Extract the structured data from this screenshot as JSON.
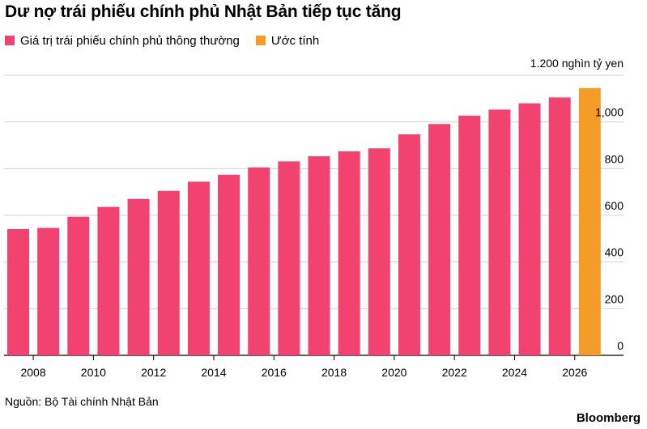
{
  "chart_data": {
    "type": "bar",
    "title": "Dư nợ trái phiếu chính phủ Nhật Bản tiếp tục tăng",
    "legend": [
      {
        "label": "Giá trị trái phiếu chính phủ thông thường",
        "color": "#f2426f"
      },
      {
        "label": "Ước tính",
        "color": "#f59b2a"
      }
    ],
    "y_unit_label": "1.200 nghìn tỷ yen",
    "y_ticks": [
      "0",
      "200",
      "400",
      "600",
      "800",
      "1,000"
    ],
    "ylim": [
      0,
      1200
    ],
    "x_ticks": [
      "2008",
      "2010",
      "2012",
      "2014",
      "2016",
      "2018",
      "2020",
      "2022",
      "2024",
      "2026"
    ],
    "categories": [
      2007,
      2008,
      2009,
      2010,
      2011,
      2012,
      2013,
      2014,
      2015,
      2016,
      2017,
      2018,
      2019,
      2020,
      2021,
      2022,
      2023,
      2024,
      2025,
      2026
    ],
    "series": [
      {
        "name": "Giá trị trái phiếu chính phủ thông thường",
        "color": "#f2426f",
        "values": [
          541,
          546,
          594,
          636,
          670,
          705,
          744,
          774,
          805,
          831,
          853,
          874,
          887,
          947,
          991,
          1027,
          1053,
          1080,
          1105,
          null
        ]
      },
      {
        "name": "Ước tính",
        "color": "#f59b2a",
        "values": [
          null,
          null,
          null,
          null,
          null,
          null,
          null,
          null,
          null,
          null,
          null,
          null,
          null,
          null,
          null,
          null,
          null,
          null,
          null,
          1145
        ]
      }
    ],
    "grid": true
  },
  "source": "Nguồn: Bộ Tài chính Nhật Bản",
  "brand": "Bloomberg"
}
